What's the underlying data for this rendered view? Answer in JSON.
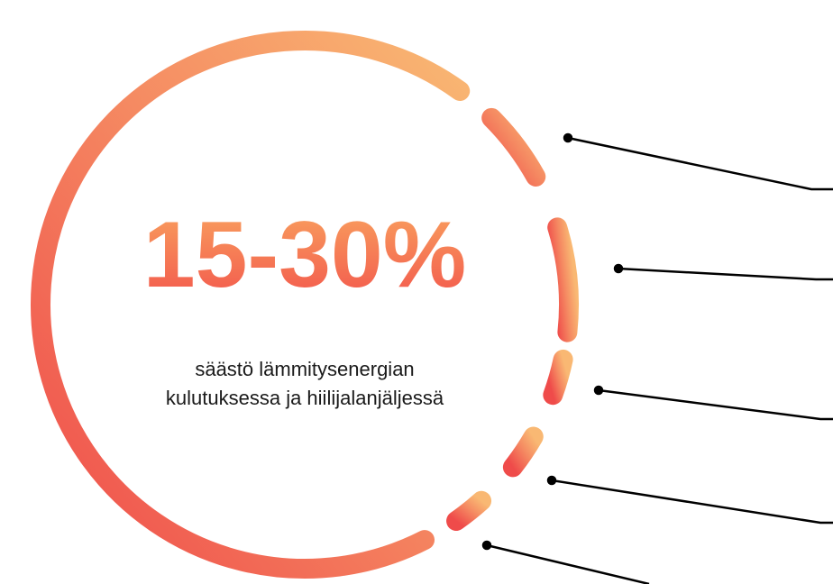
{
  "headline": "15-30%",
  "description": [
    "säästö lämmitysenergian",
    "kulutuksessa ja hiilijalanjäljessä"
  ]
}
